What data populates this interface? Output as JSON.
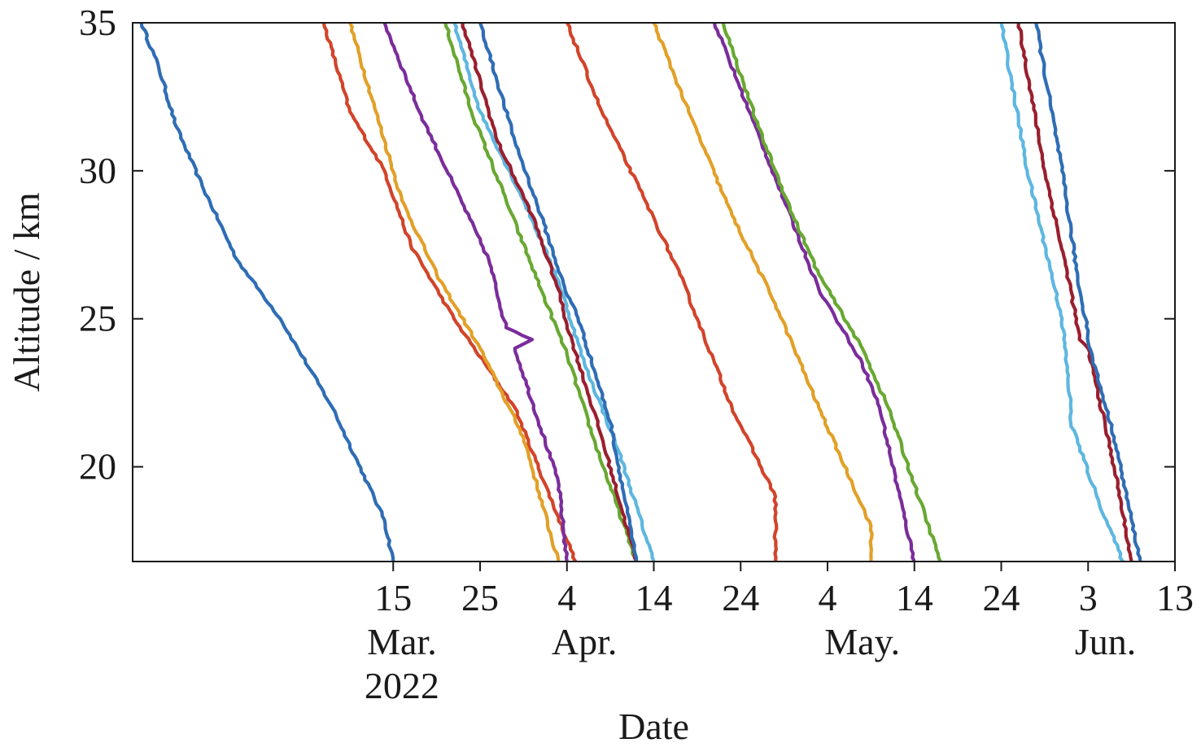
{
  "chart_data": {
    "type": "line",
    "title": "",
    "xlabel": "Date",
    "ylabel": "Altitude / km",
    "xlim": [
      "2022-02-13",
      "2022-06-13"
    ],
    "ylim": [
      16.8,
      35
    ],
    "grid": false,
    "legend": "none",
    "yticks": [
      20,
      25,
      30,
      35
    ],
    "xticks": [
      {
        "date": "2022-03-15",
        "label": "15"
      },
      {
        "date": "2022-03-25",
        "label": "25"
      },
      {
        "date": "2022-04-04",
        "label": "4"
      },
      {
        "date": "2022-04-14",
        "label": "14"
      },
      {
        "date": "2022-04-24",
        "label": "24"
      },
      {
        "date": "2022-05-04",
        "label": "4"
      },
      {
        "date": "2022-05-14",
        "label": "14"
      },
      {
        "date": "2022-05-24",
        "label": "24"
      },
      {
        "date": "2022-06-03",
        "label": "3"
      },
      {
        "date": "2022-06-13",
        "label": "13"
      }
    ],
    "month_labels": [
      {
        "date": "2022-03-16",
        "text": "Mar."
      },
      {
        "date": "2022-04-06",
        "text": "Apr."
      },
      {
        "date": "2022-05-08",
        "text": "May."
      },
      {
        "date": "2022-06-05",
        "text": "Jun."
      }
    ],
    "year_label": {
      "date": "2022-03-16",
      "text": "2022"
    },
    "series": [
      {
        "color": "#2f6db5",
        "x": [
          "2022-02-14",
          "2022-02-16",
          "2022-02-18",
          "2022-02-21",
          "2022-02-25",
          "2022-03-02",
          "2022-03-08",
          "2022-03-14",
          "2022-03-15"
        ],
        "y": [
          35,
          33.5,
          31.5,
          29.5,
          27,
          25,
          22,
          18.2,
          16.8
        ]
      },
      {
        "color": "#d2442a",
        "x": [
          "2022-03-07",
          "2022-03-10",
          "2022-03-14",
          "2022-03-17",
          "2022-03-22",
          "2022-03-29",
          "2022-04-05"
        ],
        "y": [
          35,
          32,
          30,
          27.5,
          25,
          22,
          16.8
        ]
      },
      {
        "color": "#e2a028",
        "x": [
          "2022-03-10",
          "2022-03-13",
          "2022-03-16",
          "2022-03-20",
          "2022-03-25",
          "2022-03-30",
          "2022-04-03"
        ],
        "y": [
          35,
          32,
          29,
          26.5,
          24,
          21,
          16.8
        ]
      },
      {
        "color": "#7b2d9b",
        "x": [
          "2022-03-14",
          "2022-03-18",
          "2022-03-22",
          "2022-03-26",
          "2022-03-28",
          "2022-03-31",
          "2022-03-29",
          "2022-04-03",
          "2022-04-04"
        ],
        "y": [
          35,
          32,
          29.5,
          27,
          24.7,
          24.3,
          24,
          19.5,
          16.8
        ]
      },
      {
        "color": "#68a832",
        "x": [
          "2022-03-21",
          "2022-03-24",
          "2022-03-28",
          "2022-04-01",
          "2022-04-04",
          "2022-04-07",
          "2022-04-12"
        ],
        "y": [
          35,
          32,
          29,
          26,
          23.8,
          21,
          16.8
        ]
      },
      {
        "color": "#5db7e0",
        "x": [
          "2022-03-22",
          "2022-03-25",
          "2022-03-30",
          "2022-04-03",
          "2022-04-06",
          "2022-04-10",
          "2022-04-14"
        ],
        "y": [
          35,
          32,
          29,
          26.3,
          23.5,
          20.5,
          16.8
        ]
      },
      {
        "color": "#9a1f2e",
        "x": [
          "2022-03-23",
          "2022-03-27",
          "2022-03-31",
          "2022-04-03",
          "2022-04-04",
          "2022-04-08",
          "2022-04-12"
        ],
        "y": [
          35,
          31,
          28.5,
          26,
          24.8,
          21,
          16.8
        ]
      },
      {
        "color": "#2f6db5",
        "x": [
          "2022-03-25",
          "2022-03-29",
          "2022-04-01",
          "2022-04-04",
          "2022-04-05",
          "2022-04-09",
          "2022-04-12"
        ],
        "y": [
          35,
          31,
          28.5,
          25.8,
          25.3,
          21.5,
          16.8
        ]
      },
      {
        "color": "#d2442a",
        "x": [
          "2022-04-04",
          "2022-04-08",
          "2022-04-13",
          "2022-04-17",
          "2022-04-19",
          "2022-04-23",
          "2022-04-28",
          "2022-04-28"
        ],
        "y": [
          35,
          32,
          29,
          26.5,
          25,
          22,
          19,
          16.8
        ]
      },
      {
        "color": "#e2a028",
        "x": [
          "2022-04-14",
          "2022-04-18",
          "2022-04-23",
          "2022-04-28",
          "2022-05-03",
          "2022-05-09",
          "2022-05-09"
        ],
        "y": [
          35,
          32,
          28.5,
          25.5,
          22,
          18,
          16.8
        ]
      },
      {
        "color": "#7b2d9b",
        "x": [
          "2022-04-21",
          "2022-04-25",
          "2022-04-29",
          "2022-05-03",
          "2022-05-08",
          "2022-05-10",
          "2022-05-14"
        ],
        "y": [
          35,
          32,
          29,
          26,
          23.5,
          22,
          16.8
        ]
      },
      {
        "color": "#68a832",
        "x": [
          "2022-04-22",
          "2022-04-26",
          "2022-04-30",
          "2022-05-03",
          "2022-05-08",
          "2022-05-11",
          "2022-05-17"
        ],
        "y": [
          35,
          31.5,
          28.5,
          26.5,
          24,
          22,
          16.8
        ]
      },
      {
        "color": "#5db7e0",
        "x": [
          "2022-05-24",
          "2022-05-27",
          "2022-05-31",
          "2022-06-01",
          "2022-06-01",
          "2022-06-04",
          "2022-06-07"
        ],
        "y": [
          35,
          30,
          25,
          22,
          21.5,
          19,
          16.8
        ]
      },
      {
        "color": "#9a1f2e",
        "x": [
          "2022-05-26",
          "2022-05-29",
          "2022-06-01",
          "2022-06-02",
          "2022-06-03",
          "2022-06-06",
          "2022-06-08"
        ],
        "y": [
          35,
          30,
          26,
          24.3,
          24,
          20,
          16.8
        ]
      },
      {
        "color": "#2f6db5",
        "x": [
          "2022-05-28",
          "2022-05-31",
          "2022-06-02",
          "2022-06-03",
          "2022-06-03",
          "2022-06-06",
          "2022-06-09"
        ],
        "y": [
          35,
          30,
          26,
          24.6,
          24.2,
          21,
          16.8
        ]
      }
    ]
  }
}
